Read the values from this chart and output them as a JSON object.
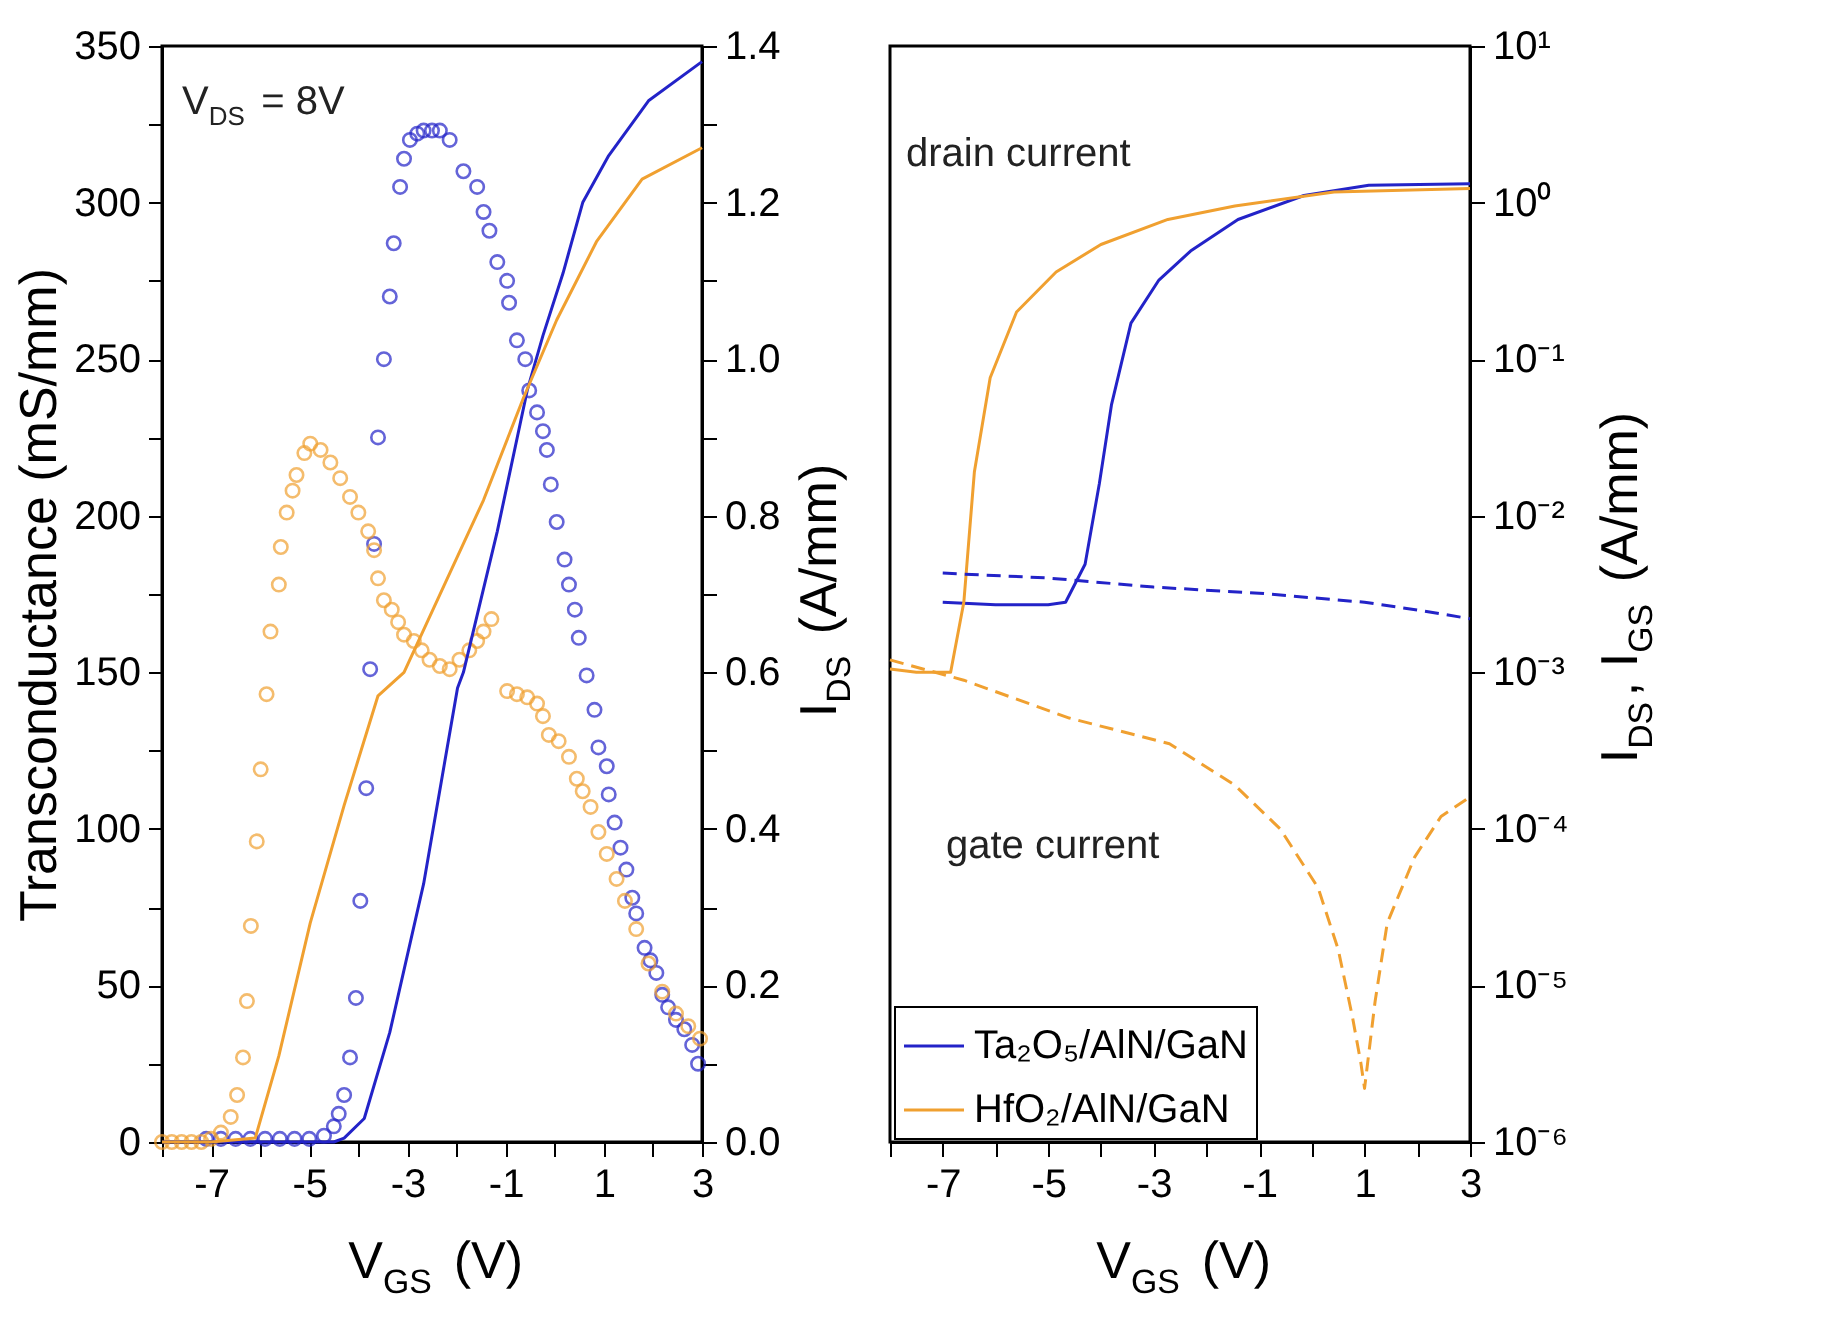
{
  "chart_data": [
    {
      "type": "scatter",
      "xlabel": "V$_{GS}$ (V)",
      "ylabel": "Transconductance (mS/mm)",
      "y2label": "I$_{DS}$ (A/mm)",
      "annotations": [
        "V$_{DS}$ = 8V"
      ],
      "xlim": [
        -8,
        3
      ],
      "xticks": [
        {
          "value": -8,
          "label": null
        },
        -7,
        {
          "value": -6,
          "label": null
        },
        -5,
        {
          "value": -4,
          "label": null
        },
        -3,
        {
          "value": -2,
          "label": null
        },
        -1,
        {
          "value": 0,
          "label": null
        },
        1,
        {
          "value": 2,
          "label": null
        },
        3
      ],
      "ylim": [
        0,
        350
      ],
      "yticks": [
        0,
        {
          "value": 25,
          "label": null
        },
        50,
        {
          "value": 75,
          "label": null
        },
        100,
        {
          "value": 125,
          "label": null
        },
        150,
        {
          "value": 175,
          "label": null
        },
        200,
        {
          "value": 225,
          "label": null
        },
        250,
        {
          "value": 275,
          "label": null
        },
        300,
        {
          "value": 325,
          "label": null
        },
        350
      ],
      "y2lim": [
        0,
        1.4
      ],
      "y2ticks": [
        {
          "value": 0,
          "label": "0.0"
        },
        {
          "value": 0.1,
          "label": null
        },
        0.2,
        {
          "value": 0.3,
          "label": null
        },
        0.4,
        {
          "value": 0.5,
          "label": null
        },
        0.6,
        {
          "value": 0.7,
          "label": null
        },
        0.8,
        {
          "value": 0.9,
          "label": null
        },
        {
          "value": 1,
          "label": "1.0"
        },
        {
          "value": 1.1,
          "label": null
        },
        1.2,
        {
          "value": 1.3,
          "label": null
        },
        1.4
      ],
      "grid": false,
      "legend": false,
      "series": [
        {
          "color": "#2323c8",
          "marker": "circle",
          "x": [
            -7.1,
            -6.8,
            -6.5,
            -6.2,
            -5.9,
            -5.6,
            -5.3,
            -5.0,
            -4.7,
            -4.5,
            -4.4,
            -4.29,
            -4.17,
            -4.05,
            -3.96,
            -3.84,
            -3.76,
            -3.68,
            -3.6,
            -3.48,
            -3.36,
            -3.28,
            -3.15,
            -3.07,
            -2.95,
            -2.8,
            -2.67,
            -2.5,
            -2.34,
            -2.14,
            -1.86,
            -1.58,
            -1.45,
            -1.33,
            -1.17,
            -0.97,
            -0.93,
            -0.77,
            -0.6,
            -0.52,
            -0.36,
            -0.24,
            -0.16,
            -0.08,
            0.04,
            0.2,
            0.29,
            0.41,
            0.49,
            0.65,
            0.81,
            0.89,
            1.06,
            1.1,
            1.22,
            1.34,
            1.46,
            1.58,
            1.66,
            1.83,
            1.95,
            2.07,
            2.19,
            2.31,
            2.47,
            2.64,
            2.8,
            2.92
          ],
          "values": [
            1,
            1,
            1,
            1,
            1,
            1,
            1,
            1,
            2,
            5,
            9,
            15,
            27,
            46,
            77,
            113,
            151,
            191,
            225,
            250,
            270,
            287,
            305,
            314,
            320,
            322,
            323,
            323,
            323,
            320,
            310,
            305,
            297,
            291,
            281,
            275,
            268,
            256,
            250,
            240,
            233,
            227,
            221,
            210,
            198,
            186,
            178,
            170,
            161,
            149,
            138,
            126,
            120,
            111,
            102,
            94,
            87,
            78,
            73,
            62,
            58,
            54,
            47,
            43,
            39,
            36,
            31,
            25
          ]
        },
        {
          "color": "#f0a030",
          "marker": "circle",
          "x": [
            -8,
            -7.8,
            -7.6,
            -7.4,
            -7.2,
            -7.0,
            -6.8,
            -6.6,
            -6.47,
            -6.35,
            -6.27,
            -6.19,
            -6.07,
            -5.99,
            -5.87,
            -5.79,
            -5.62,
            -5.58,
            -5.46,
            -5.34,
            -5.26,
            -5.1,
            -4.98,
            -4.77,
            -4.57,
            -4.37,
            -4.17,
            -4.0,
            -3.8,
            -3.68,
            -3.6,
            -3.48,
            -3.32,
            -3.19,
            -3.07,
            -2.87,
            -2.71,
            -2.55,
            -2.34,
            -2.14,
            -1.94,
            -1.74,
            -1.58,
            -1.45,
            -1.29,
            -0.97,
            -0.77,
            -0.56,
            -0.36,
            -0.24,
            -0.12,
            0.08,
            0.29,
            0.45,
            0.57,
            0.73,
            0.89,
            1.06,
            1.26,
            1.43,
            1.66,
            1.91,
            2.19,
            2.47,
            2.72,
            2.96
          ],
          "values": [
            0,
            0,
            0,
            0,
            0,
            1,
            3,
            8,
            15,
            27,
            45,
            69,
            96,
            119,
            143,
            163,
            178,
            190,
            201,
            208,
            213,
            220,
            223,
            221,
            217,
            212,
            206,
            201,
            195,
            189,
            180,
            173,
            170,
            166,
            162,
            160,
            157,
            154,
            152,
            151,
            154,
            157,
            160,
            163,
            167,
            144,
            143,
            142,
            140,
            136,
            130,
            128,
            123,
            116,
            112,
            107,
            99,
            92,
            84,
            77,
            68,
            57,
            48,
            41,
            37,
            33
          ]
        },
        {
          "type": "line",
          "axis": "y2",
          "color": "#2323c8",
          "line_style": "solid",
          "x": [
            -8,
            -6,
            -4.5,
            -4.29,
            -3.88,
            -3.36,
            -2.67,
            -1.98,
            -1.86,
            -1.17,
            -0.56,
            -0.24,
            0.17,
            0.57,
            1.1,
            1.91,
            3
          ],
          "values": [
            0,
            0,
            0,
            0.005,
            0.03,
            0.14,
            0.33,
            0.58,
            0.6,
            0.78,
            0.96,
            1.03,
            1.11,
            1.2,
            1.26,
            1.33,
            1.38
          ]
        },
        {
          "type": "line",
          "axis": "y2",
          "color": "#f0a030",
          "line_style": "solid",
          "x": [
            -8,
            -7,
            -6.1,
            -5.62,
            -4.98,
            -4.29,
            -3.6,
            -3.07,
            -2.26,
            -1.45,
            -0.64,
            0.04,
            0.85,
            1.78,
            3
          ],
          "values": [
            0,
            0,
            0.005,
            0.11,
            0.28,
            0.43,
            0.57,
            0.6,
            0.71,
            0.82,
            0.95,
            1.05,
            1.15,
            1.23,
            1.27
          ]
        }
      ]
    },
    {
      "type": "line",
      "xlabel": "V$_{GS}$ (V)",
      "y2label": "I$_{DS}$, I$_{GS}$ (A/mm)",
      "annotations": [
        "drain current",
        "gate current"
      ],
      "xlim": [
        -8,
        3
      ],
      "xticks": [
        {
          "value": -8,
          "label": null
        },
        -7,
        {
          "value": -6,
          "label": null
        },
        -5,
        {
          "value": -4,
          "label": null
        },
        -3,
        {
          "value": -2,
          "label": null
        },
        -1,
        {
          "value": 0,
          "label": null
        },
        1,
        {
          "value": 2,
          "label": null
        },
        3
      ],
      "y2lim": [
        1e-06,
        10
      ],
      "y2ticks": [
        {
          "value": 1e-06,
          "label": "10⁻⁶"
        },
        {
          "value": 1e-05,
          "label": "10⁻⁵"
        },
        {
          "value": 0.0001,
          "label": "10⁻⁴"
        },
        {
          "value": 0.001,
          "label": "10⁻³"
        },
        {
          "value": 0.01,
          "label": "10⁻²"
        },
        {
          "value": 0.1,
          "label": "10⁻¹"
        },
        {
          "value": 1,
          "label": "10⁰"
        },
        {
          "value": 10,
          "label": "10¹"
        }
      ],
      "log": "y2",
      "grid": false,
      "legend": "bottom left",
      "series": [
        {
          "name": "Ta₂O₅/AlN/GaN",
          "axis": "y2",
          "color": "#2323c8",
          "line_style": "solid",
          "x": [
            -7,
            -6,
            -5,
            -4.67,
            -4.3,
            -4.03,
            -3.8,
            -3.43,
            -2.9,
            -2.3,
            -1.4,
            -0.15,
            1.08,
            3
          ],
          "values": [
            0.0028,
            0.0027,
            0.0027,
            0.0028,
            0.0049,
            0.016,
            0.051,
            0.17,
            0.32,
            0.49,
            0.78,
            1.11,
            1.29,
            1.32
          ]
        },
        {
          "name": "HfO₂/AlN/GaN",
          "axis": "y2",
          "color": "#f0a030",
          "line_style": "solid",
          "x": [
            -8,
            -7.5,
            -6.85,
            -6.6,
            -6.4,
            -6.1,
            -5.6,
            -4.85,
            -4.0,
            -2.73,
            -1.46,
            0.42,
            3
          ],
          "values": [
            0.00105,
            0.001,
            0.001,
            0.0028,
            0.019,
            0.076,
            0.2,
            0.36,
            0.54,
            0.78,
            0.95,
            1.17,
            1.23
          ]
        },
        {
          "axis": "y2",
          "color": "#2323c8",
          "line_style": "dashed",
          "x": [
            -7,
            -5,
            -3,
            -1,
            1,
            2,
            3
          ],
          "values": [
            0.0043,
            0.004,
            0.0035,
            0.0032,
            0.0028,
            0.0025,
            0.0022
          ]
        },
        {
          "axis": "y2",
          "color": "#f0a030",
          "line_style": "dashed",
          "x": [
            -8,
            -6.6,
            -4.6,
            -2.7,
            -1.46,
            -0.6,
            0.12,
            0.5,
            0.77,
            0.93,
            1.0,
            1.2,
            1.43,
            1.95,
            2.45,
            3
          ],
          "values": [
            0.0012,
            0.00089,
            0.00051,
            0.00035,
            0.00019,
            0.0001,
            4.2e-05,
            1.7e-05,
            6.3e-06,
            3.2e-06,
            2.2e-06,
            7.9e-06,
            2.5e-05,
            6.6e-05,
            0.00012,
            0.00016
          ]
        }
      ]
    }
  ]
}
